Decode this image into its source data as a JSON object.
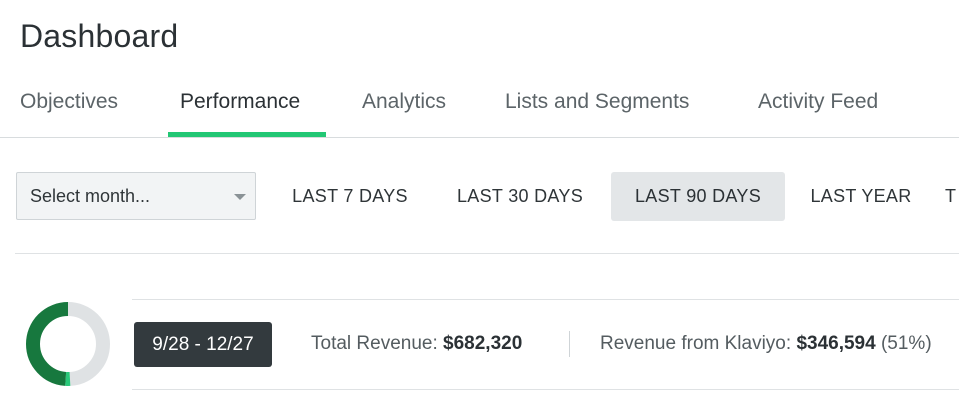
{
  "header": {
    "title": "Dashboard"
  },
  "tabs": [
    {
      "label": "Objectives"
    },
    {
      "label": "Performance"
    },
    {
      "label": "Analytics"
    },
    {
      "label": "Lists and Segments"
    },
    {
      "label": "Activity Feed"
    }
  ],
  "active_tab": "Performance",
  "filters": {
    "month_select": {
      "value": "Select month..."
    },
    "ranges": [
      {
        "label": "LAST 7 DAYS"
      },
      {
        "label": "LAST 30 DAYS"
      },
      {
        "label": "LAST 90 DAYS"
      },
      {
        "label": "LAST YEAR"
      },
      {
        "label": "T"
      }
    ],
    "active_range": "LAST 90 DAYS"
  },
  "summary": {
    "date_range": "9/28 - 12/27",
    "total_revenue_label": "Total Revenue:",
    "total_revenue_value": "$682,320",
    "klaviyo_revenue_label": "Revenue from Klaviyo:",
    "klaviyo_revenue_value": "$346,594",
    "klaviyo_revenue_pct": "(51%)",
    "donut": {
      "segments": [
        {
          "fraction": 0.49,
          "color": "#dfe2e4"
        },
        {
          "fraction": 0.02,
          "color": "#29c97a"
        },
        {
          "fraction": 0.49,
          "color": "#17783e"
        }
      ]
    }
  },
  "colors": {
    "accent": "#22c774",
    "badge_bg": "#333a3e",
    "active_range_bg": "#e3e6e8"
  }
}
